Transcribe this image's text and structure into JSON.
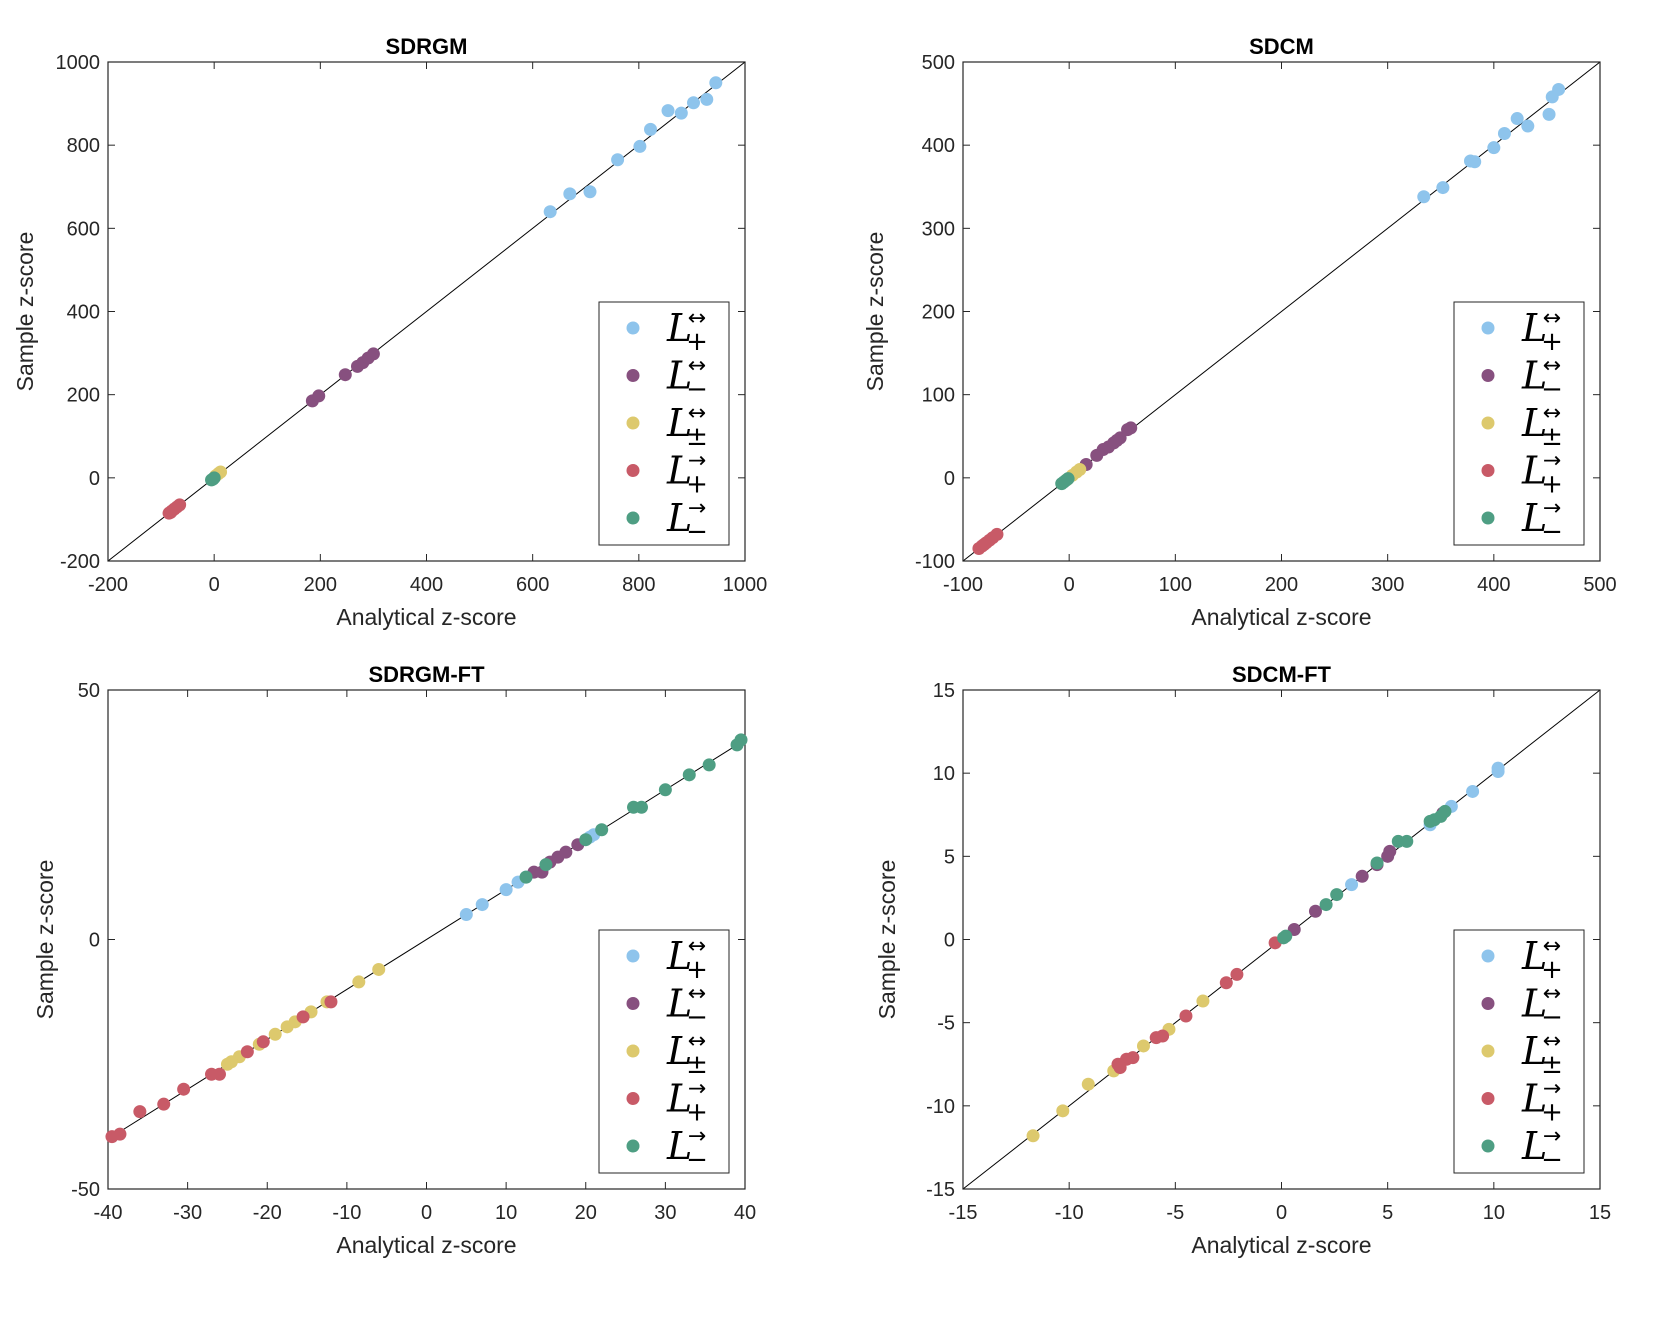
{
  "colors": {
    "L_plus_bi": "#8ec4ec",
    "L_minus_bi": "#87507f",
    "L_pm_bi": "#ddc96d",
    "L_plus_dir": "#c85a67",
    "L_minus_dir": "#4e9e83",
    "diagonal": "#000000"
  },
  "legend": [
    {
      "key": "L_plus_bi",
      "letter": "L",
      "arrow": "↔",
      "sign": "+"
    },
    {
      "key": "L_minus_bi",
      "letter": "L",
      "arrow": "↔",
      "sign": "−"
    },
    {
      "key": "L_pm_bi",
      "letter": "L",
      "arrow": "↔",
      "sign": "±"
    },
    {
      "key": "L_plus_dir",
      "letter": "L",
      "arrow": "→",
      "sign": "+"
    },
    {
      "key": "L_minus_dir",
      "letter": "L",
      "arrow": "→",
      "sign": "−"
    }
  ],
  "chart_data": [
    {
      "type": "scatter",
      "title": "SDRGM",
      "xlabel": "Analytical z-score",
      "ylabel": "Sample z-score",
      "xlim": [
        -200,
        1000
      ],
      "ylim": [
        -200,
        1000
      ],
      "xticks": [
        -200,
        0,
        200,
        400,
        600,
        800,
        1000
      ],
      "yticks": [
        -200,
        0,
        200,
        400,
        600,
        800,
        1000
      ],
      "legend_position": "bottom-right",
      "grid": false,
      "diagonal": true,
      "series": [
        {
          "key": "L_plus_bi",
          "points": [
            [
              633,
              640
            ],
            [
              670,
              683
            ],
            [
              708,
              688
            ],
            [
              760,
              765
            ],
            [
              802,
              797
            ],
            [
              822,
              838
            ],
            [
              855,
              883
            ],
            [
              880,
              877
            ],
            [
              903,
              902
            ],
            [
              928,
              910
            ],
            [
              945,
              950
            ]
          ]
        },
        {
          "key": "L_minus_bi",
          "points": [
            [
              185,
              185
            ],
            [
              197,
              197
            ],
            [
              247,
              248
            ],
            [
              270,
              268
            ],
            [
              280,
              277
            ],
            [
              290,
              288
            ],
            [
              300,
              298
            ]
          ]
        },
        {
          "key": "L_pm_bi",
          "points": [
            [
              8,
              10
            ],
            [
              12,
              14
            ],
            [
              3,
              5
            ]
          ]
        },
        {
          "key": "L_plus_dir",
          "points": [
            [
              -85,
              -85
            ],
            [
              -80,
              -80
            ],
            [
              -75,
              -75
            ],
            [
              -70,
              -70
            ],
            [
              -65,
              -65
            ],
            [
              -82,
              -83
            ]
          ]
        },
        {
          "key": "L_minus_dir",
          "points": [
            [
              -5,
              -5
            ],
            [
              0,
              0
            ],
            [
              -2,
              -3
            ]
          ]
        }
      ]
    },
    {
      "type": "scatter",
      "title": "SDCM",
      "xlabel": "Analytical z-score",
      "ylabel": "Sample z-score",
      "xlim": [
        -100,
        500
      ],
      "ylim": [
        -100,
        500
      ],
      "xticks": [
        -100,
        0,
        100,
        200,
        300,
        400,
        500
      ],
      "yticks": [
        -100,
        0,
        100,
        200,
        300,
        400,
        500
      ],
      "legend_position": "bottom-right",
      "grid": false,
      "diagonal": true,
      "series": [
        {
          "key": "L_plus_bi",
          "points": [
            [
              334,
              338
            ],
            [
              352,
              349
            ],
            [
              378,
              381
            ],
            [
              382,
              380
            ],
            [
              400,
              397
            ],
            [
              410,
              414
            ],
            [
              422,
              432
            ],
            [
              432,
              423
            ],
            [
              452,
              437
            ],
            [
              455,
              458
            ],
            [
              461,
              467
            ]
          ]
        },
        {
          "key": "L_minus_bi",
          "points": [
            [
              16,
              16
            ],
            [
              26,
              27
            ],
            [
              32,
              34
            ],
            [
              37,
              37
            ],
            [
              42,
              42
            ],
            [
              48,
              48
            ],
            [
              55,
              58
            ],
            [
              58,
              60
            ],
            [
              45,
              45
            ]
          ]
        },
        {
          "key": "L_pm_bi",
          "points": [
            [
              3,
              3
            ],
            [
              7,
              7
            ],
            [
              10,
              10
            ],
            [
              -2,
              -2
            ]
          ]
        },
        {
          "key": "L_plus_dir",
          "points": [
            [
              -85,
              -85
            ],
            [
              -82,
              -82
            ],
            [
              -78,
              -78
            ],
            [
              -75,
              -75
            ],
            [
              -72,
              -72
            ],
            [
              -68,
              -68
            ],
            [
              -80,
              -80
            ]
          ]
        },
        {
          "key": "L_minus_dir",
          "points": [
            [
              -7,
              -7
            ],
            [
              -5,
              -5
            ],
            [
              -3,
              -3
            ],
            [
              -1,
              -1
            ]
          ]
        }
      ]
    },
    {
      "type": "scatter",
      "title": "SDRGM-FT",
      "xlabel": "Analytical z-score",
      "ylabel": "Sample z-score",
      "xlim": [
        -40,
        40
      ],
      "ylim": [
        -50,
        50
      ],
      "xticks": [
        -40,
        -30,
        -20,
        -10,
        0,
        10,
        20,
        30,
        40
      ],
      "yticks": [
        -50,
        0,
        50
      ],
      "legend_position": "bottom-right",
      "grid": false,
      "diagonal": true,
      "series": [
        {
          "key": "L_plus_bi",
          "points": [
            [
              5,
              5
            ],
            [
              7,
              7
            ],
            [
              10,
              10
            ],
            [
              11.5,
              11.5
            ],
            [
              12.5,
              12.5
            ],
            [
              20.5,
              20.5
            ],
            [
              21,
              21
            ]
          ]
        },
        {
          "key": "L_minus_bi",
          "points": [
            [
              13.5,
              13.5
            ],
            [
              14.5,
              13.5
            ],
            [
              15.5,
              15.5
            ],
            [
              16.5,
              16.5
            ],
            [
              17.5,
              17.5
            ],
            [
              19,
              19
            ]
          ]
        },
        {
          "key": "L_pm_bi",
          "points": [
            [
              -6,
              -6
            ],
            [
              -8.5,
              -8.5
            ],
            [
              -12.5,
              -12.5
            ],
            [
              -14.5,
              -14.5
            ],
            [
              -16.5,
              -16.5
            ],
            [
              -17.5,
              -17.5
            ],
            [
              -19,
              -19
            ],
            [
              -21,
              -21
            ],
            [
              -23.5,
              -23.5
            ],
            [
              -24.5,
              -24.5
            ],
            [
              -25,
              -25
            ]
          ]
        },
        {
          "key": "L_plus_dir",
          "points": [
            [
              -12,
              -12.5
            ],
            [
              -15.5,
              -15.5
            ],
            [
              -20.5,
              -20.5
            ],
            [
              -22.5,
              -22.5
            ],
            [
              -26,
              -27
            ],
            [
              -27,
              -27
            ],
            [
              -30.5,
              -30
            ],
            [
              -33,
              -33
            ],
            [
              -36,
              -34.5
            ],
            [
              -38.5,
              -39
            ],
            [
              -39.5,
              -39.5
            ]
          ]
        },
        {
          "key": "L_minus_dir",
          "points": [
            [
              12.5,
              12.5
            ],
            [
              15,
              15
            ],
            [
              20,
              20
            ],
            [
              22,
              22
            ],
            [
              26,
              26.5
            ],
            [
              27,
              26.5
            ],
            [
              30,
              30
            ],
            [
              33,
              33
            ],
            [
              35.5,
              35
            ],
            [
              39.5,
              40
            ],
            [
              39,
              39
            ]
          ]
        }
      ]
    },
    {
      "type": "scatter",
      "title": "SDCM-FT",
      "xlabel": "Analytical z-score",
      "ylabel": "Sample z-score",
      "xlim": [
        -15,
        15
      ],
      "ylim": [
        -15,
        15
      ],
      "xticks": [
        -15,
        -10,
        -5,
        0,
        5,
        10,
        15
      ],
      "yticks": [
        -15,
        -10,
        -5,
        0,
        5,
        10,
        15
      ],
      "legend_position": "bottom-right",
      "grid": false,
      "diagonal": true,
      "series": [
        {
          "key": "L_plus_bi",
          "points": [
            [
              3.3,
              3.3
            ],
            [
              7,
              6.9
            ],
            [
              8,
              8
            ],
            [
              9,
              8.9
            ],
            [
              10.2,
              10.1
            ],
            [
              10.2,
              10.3
            ]
          ]
        },
        {
          "key": "L_minus_bi",
          "points": [
            [
              0.6,
              0.6
            ],
            [
              1.6,
              1.7
            ],
            [
              3.8,
              3.8
            ],
            [
              4.5,
              4.5
            ],
            [
              5,
              5
            ],
            [
              5.1,
              5.3
            ],
            [
              7.6,
              7.6
            ]
          ]
        },
        {
          "key": "L_pm_bi",
          "points": [
            [
              -5.3,
              -5.4
            ],
            [
              -3.7,
              -3.7
            ],
            [
              -6.5,
              -6.4
            ],
            [
              -7.9,
              -7.9
            ],
            [
              -9.1,
              -8.7
            ],
            [
              -10.3,
              -10.3
            ],
            [
              -11.7,
              -11.8
            ]
          ]
        },
        {
          "key": "L_plus_dir",
          "points": [
            [
              -0.3,
              -0.2
            ],
            [
              -2.1,
              -2.1
            ],
            [
              -2.6,
              -2.6
            ],
            [
              -4.5,
              -4.6
            ],
            [
              -5.6,
              -5.8
            ],
            [
              -5.9,
              -5.9
            ],
            [
              -7,
              -7.1
            ],
            [
              -7.3,
              -7.2
            ],
            [
              -7.7,
              -7.5
            ],
            [
              -7.6,
              -7.7
            ]
          ]
        },
        {
          "key": "L_minus_dir",
          "points": [
            [
              0.1,
              0.1
            ],
            [
              0.2,
              0.2
            ],
            [
              2.1,
              2.1
            ],
            [
              2.6,
              2.7
            ],
            [
              4.5,
              4.6
            ],
            [
              5.5,
              5.9
            ],
            [
              5.9,
              5.9
            ],
            [
              7,
              7.1
            ],
            [
              7.2,
              7.2
            ],
            [
              7.5,
              7.4
            ],
            [
              7.7,
              7.7
            ]
          ]
        }
      ]
    }
  ]
}
